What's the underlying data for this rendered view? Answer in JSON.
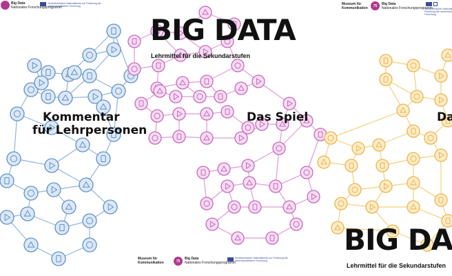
{
  "colors": {
    "blue": "#8fb4dc",
    "blue_dark": "#5d8fc7",
    "pink": "#de9ad6",
    "pink_dark": "#c868bd",
    "yellow": "#f5cf7a",
    "yellow_dark": "#eeb44a",
    "brand": "#b0388f",
    "snf": "#3a4aa0"
  },
  "poster_left": {
    "title_line1": "Kommentar",
    "title_line2": "für Lehrpersonen",
    "snf_text": "Schweizerischer Nationalfonds zur Förderung der wissenschaftlichen Forschung",
    "bigdata_label": "Big Data",
    "program_label": "Nationales Forschungsprogramm"
  },
  "poster_middle": {
    "big_title": "BIG DATA",
    "subtitle": "Lehrmittel für die Sekundarstufen",
    "heading": "Das Spiel",
    "museum_line1": "Museum für",
    "museum_line2": "Kommunikation",
    "badge": "75",
    "bigdata_label": "Big Data",
    "program_label": "Nationales Forschungsprogramm",
    "snf_text": "Schweizerischer Nationalfonds zur Förderung der wissenschaftlichen Forschung"
  },
  "poster_right": {
    "museum_line1": "Museum für",
    "museum_line2": "Kommunikation",
    "badge": "75",
    "bigdata_label": "Big Data",
    "program_label": "Nationales Forschungsprogramm",
    "snf_text": "Schweizerischer Nationalfonds zur Förderung der wissenschaftlichen Forschung",
    "heading_partial": "Da",
    "big_title_partial": "BIG DA",
    "subtitle": "Lehrmittel für die Sekundarstufen"
  }
}
